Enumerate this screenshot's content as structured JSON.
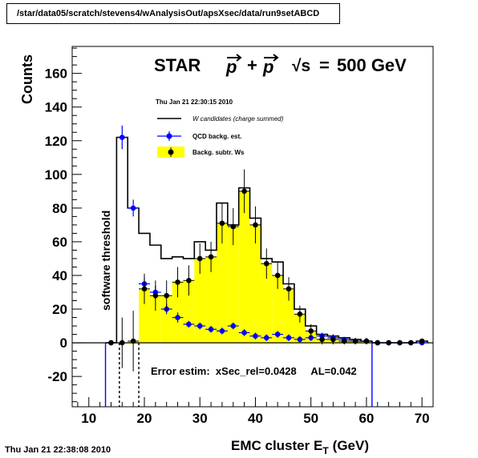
{
  "header": {
    "path": "/star/data05/scratch/stevens4/wAnalysisOut/apsXsec/data/run9setABCD"
  },
  "footer": {
    "timestamp": "Thu Jan 21 22:38:08 2010"
  },
  "chart_data": {
    "type": "bar",
    "title": "STAR  p + p  √s = 500 GeV",
    "title_parts": {
      "exp": "STAR",
      "beam_a": "p",
      "plus": "+",
      "beam_b": "p",
      "sqrt": "√s",
      "eq": "=",
      "energy": "500 GeV"
    },
    "subtitle": "Thu Jan 21 22:30:15 2010",
    "xlabel": "EMC cluster E",
    "xlabel_sub": "T",
    "xlabel_unit": "(GeV)",
    "ylabel": "Counts",
    "xlim": [
      7,
      72
    ],
    "ylim": [
      -38,
      176
    ],
    "xticks": [
      10,
      20,
      30,
      40,
      50,
      60,
      70
    ],
    "yticks": [
      -20,
      0,
      20,
      40,
      60,
      80,
      100,
      120,
      140,
      160
    ],
    "bin_width": 2,
    "bin_low_edges": [
      13,
      15,
      17,
      19,
      21,
      23,
      25,
      27,
      29,
      31,
      33,
      35,
      37,
      39,
      41,
      43,
      45,
      47,
      49,
      51,
      53,
      55,
      57,
      59,
      61,
      63,
      65,
      67,
      69
    ],
    "legend": [
      {
        "label": "W candidates (charge summed)",
        "style": "line",
        "color": "#000000"
      },
      {
        "label": "QCD backg. est.",
        "style": "marker",
        "color": "#0000ff"
      },
      {
        "label": "Backg. subtr. Ws",
        "style": "fill-marker",
        "color": "#ffff00"
      }
    ],
    "annotation": "software threshold",
    "threshold_lines": [
      15.5,
      19
    ],
    "error_text": "Error estim:  xSec_rel=0.0428     AL=0.042",
    "series": [
      {
        "name": "W candidates (charge summed)",
        "values": [
          0,
          122,
          80,
          65,
          58,
          50,
          51,
          50,
          60,
          55,
          83,
          70,
          92,
          74,
          50,
          48,
          35,
          20,
          10,
          5,
          4,
          3,
          2,
          1,
          0,
          0,
          0,
          0,
          1
        ]
      },
      {
        "name": "QCD backg. est.",
        "values": [
          0,
          122,
          80,
          35,
          30,
          20,
          15,
          11,
          10,
          8,
          7,
          10,
          6,
          4,
          3,
          5,
          3,
          2,
          3,
          4,
          3,
          2,
          1,
          1,
          0,
          0,
          0,
          0,
          0
        ],
        "errors": [
          0,
          7,
          5,
          4,
          4,
          3,
          3,
          2,
          2,
          2,
          2,
          2,
          2,
          2,
          2,
          2,
          2,
          2,
          2,
          2,
          2,
          1,
          1,
          1,
          0,
          0,
          0,
          0,
          0
        ]
      },
      {
        "name": "Backg. subtr. Ws",
        "values": [
          0,
          0,
          1,
          32,
          28,
          28,
          36,
          37,
          50,
          51,
          71,
          69,
          90,
          70,
          47,
          40,
          32,
          17,
          7,
          2,
          2,
          1,
          1,
          1,
          0,
          0,
          0,
          0,
          1
        ],
        "errors": [
          0,
          15,
          18,
          9,
          9,
          9,
          9,
          9,
          9,
          9,
          12,
          11,
          13,
          11,
          9,
          8,
          7,
          5,
          4,
          3,
          3,
          2,
          2,
          2,
          1,
          1,
          1,
          1,
          1
        ]
      }
    ]
  }
}
